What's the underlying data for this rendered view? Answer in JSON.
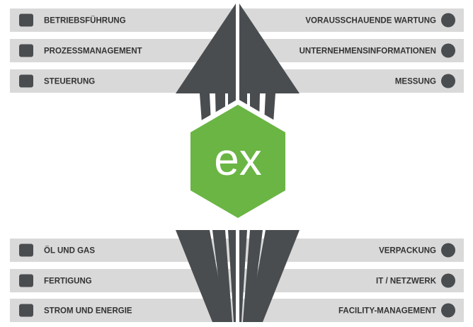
{
  "left_top": [
    "BETRIEBSFÜHRUNG",
    "PROZESSMANAGEMENT",
    "STEUERUNG"
  ],
  "right_top": [
    "VORAUSSCHAUENDE WARTUNG",
    "UNTERNEHMENSINFORMATIONEN",
    "MESSUNG"
  ],
  "left_bottom": [
    "ÖL UND GAS",
    "FERTIGUNG",
    "STROM UND ENERGIE"
  ],
  "right_bottom": [
    "VERPACKUNG",
    "IT / NETZWERK",
    "FACILITY-MANAGEMENT"
  ],
  "center": {
    "label": "ex"
  }
}
